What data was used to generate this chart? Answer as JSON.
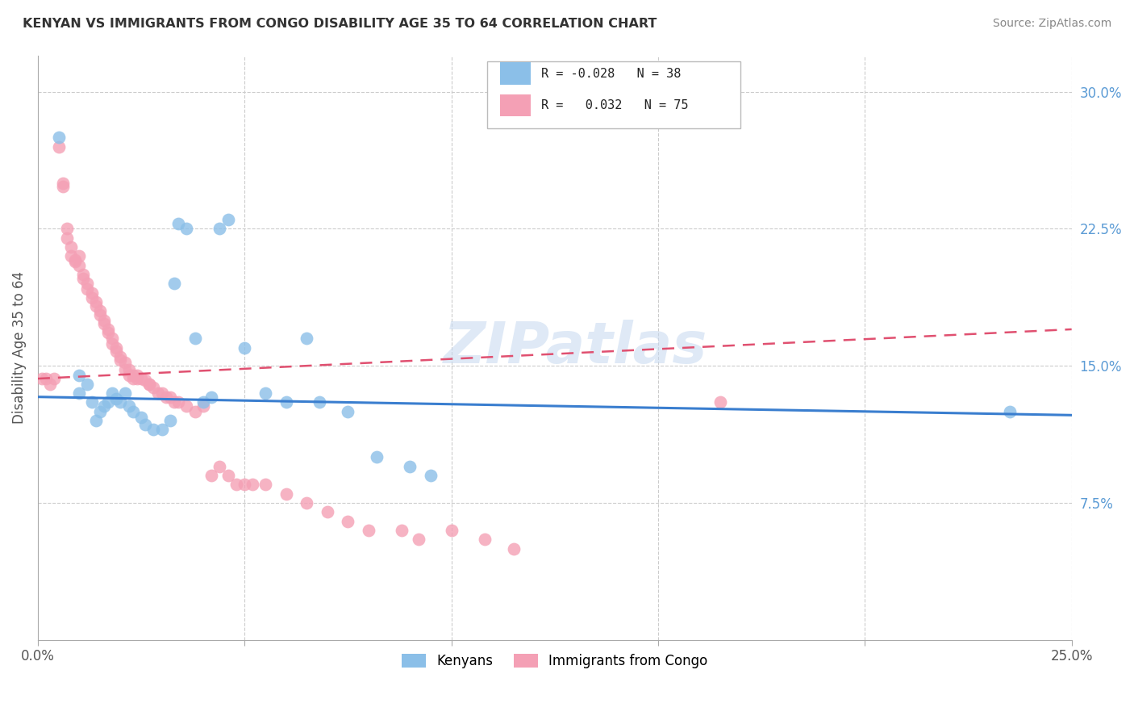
{
  "title": "KENYAN VS IMMIGRANTS FROM CONGO DISABILITY AGE 35 TO 64 CORRELATION CHART",
  "source": "Source: ZipAtlas.com",
  "ylabel": "Disability Age 35 to 64",
  "x_min": 0.0,
  "x_max": 0.25,
  "y_min": 0.0,
  "y_max": 0.32,
  "legend_r_blue": "-0.028",
  "legend_n_blue": "38",
  "legend_r_pink": "0.032",
  "legend_n_pink": "75",
  "blue_color": "#8bbfe8",
  "pink_color": "#f4a0b5",
  "blue_line_color": "#3a7ecf",
  "pink_line_color": "#e05070",
  "watermark": "ZIPatlas",
  "blue_line_x": [
    0.0,
    0.25
  ],
  "blue_line_y": [
    0.133,
    0.123
  ],
  "pink_line_x": [
    0.0,
    0.25
  ],
  "pink_line_y": [
    0.143,
    0.17
  ],
  "blue_points_x": [
    0.005,
    0.01,
    0.01,
    0.012,
    0.013,
    0.014,
    0.015,
    0.016,
    0.017,
    0.018,
    0.019,
    0.02,
    0.021,
    0.022,
    0.023,
    0.025,
    0.026,
    0.028,
    0.03,
    0.032,
    0.033,
    0.034,
    0.036,
    0.038,
    0.04,
    0.042,
    0.044,
    0.046,
    0.05,
    0.055,
    0.06,
    0.065,
    0.068,
    0.075,
    0.082,
    0.09,
    0.095,
    0.235
  ],
  "blue_points_y": [
    0.275,
    0.145,
    0.135,
    0.14,
    0.13,
    0.12,
    0.125,
    0.128,
    0.13,
    0.135,
    0.132,
    0.13,
    0.135,
    0.128,
    0.125,
    0.122,
    0.118,
    0.115,
    0.115,
    0.12,
    0.195,
    0.228,
    0.225,
    0.165,
    0.13,
    0.133,
    0.225,
    0.23,
    0.16,
    0.135,
    0.13,
    0.165,
    0.13,
    0.125,
    0.1,
    0.095,
    0.09,
    0.125
  ],
  "pink_points_x": [
    0.001,
    0.002,
    0.003,
    0.004,
    0.005,
    0.006,
    0.006,
    0.007,
    0.007,
    0.008,
    0.008,
    0.009,
    0.009,
    0.01,
    0.01,
    0.011,
    0.011,
    0.012,
    0.012,
    0.013,
    0.013,
    0.014,
    0.014,
    0.015,
    0.015,
    0.016,
    0.016,
    0.017,
    0.017,
    0.018,
    0.018,
    0.019,
    0.019,
    0.02,
    0.02,
    0.021,
    0.021,
    0.022,
    0.022,
    0.023,
    0.023,
    0.024,
    0.024,
    0.025,
    0.026,
    0.027,
    0.027,
    0.028,
    0.029,
    0.03,
    0.031,
    0.032,
    0.033,
    0.034,
    0.036,
    0.038,
    0.04,
    0.042,
    0.044,
    0.046,
    0.048,
    0.05,
    0.052,
    0.055,
    0.06,
    0.065,
    0.07,
    0.075,
    0.08,
    0.088,
    0.092,
    0.1,
    0.108,
    0.115,
    0.165
  ],
  "pink_points_y": [
    0.143,
    0.143,
    0.14,
    0.143,
    0.27,
    0.25,
    0.248,
    0.225,
    0.22,
    0.215,
    0.21,
    0.208,
    0.207,
    0.21,
    0.205,
    0.2,
    0.198,
    0.195,
    0.192,
    0.19,
    0.187,
    0.185,
    0.183,
    0.18,
    0.178,
    0.175,
    0.173,
    0.17,
    0.168,
    0.165,
    0.162,
    0.16,
    0.158,
    0.155,
    0.153,
    0.152,
    0.148,
    0.148,
    0.145,
    0.145,
    0.143,
    0.143,
    0.145,
    0.143,
    0.142,
    0.14,
    0.14,
    0.138,
    0.135,
    0.135,
    0.133,
    0.133,
    0.13,
    0.13,
    0.128,
    0.125,
    0.128,
    0.09,
    0.095,
    0.09,
    0.085,
    0.085,
    0.085,
    0.085,
    0.08,
    0.075,
    0.07,
    0.065,
    0.06,
    0.06,
    0.055,
    0.06,
    0.055,
    0.05,
    0.13
  ]
}
